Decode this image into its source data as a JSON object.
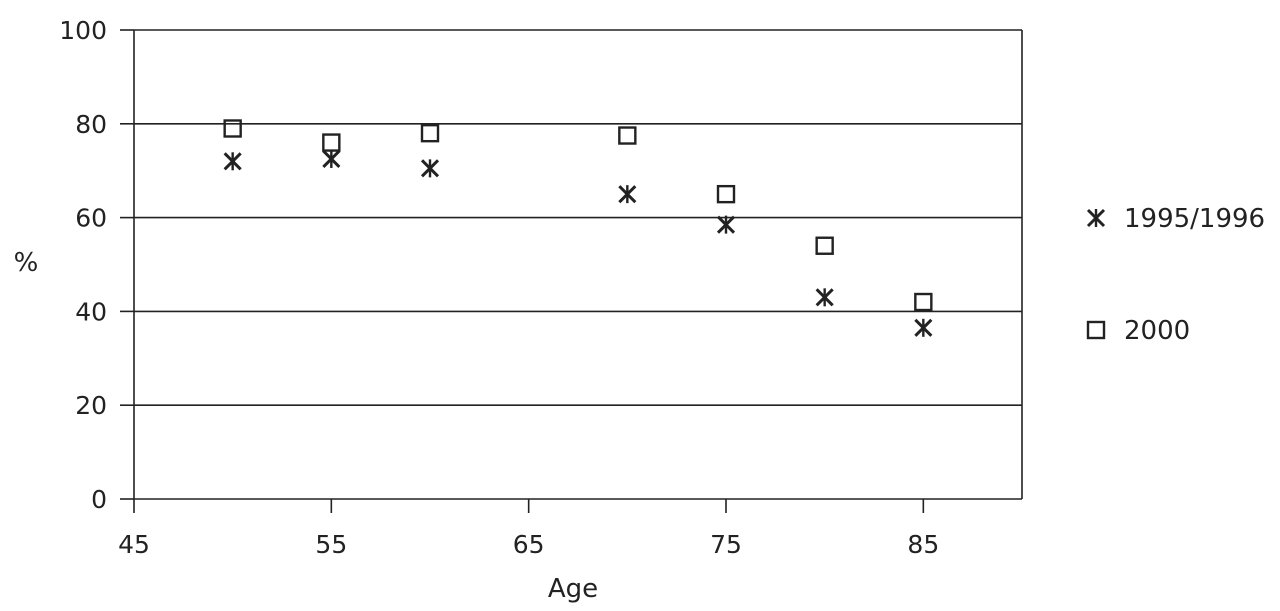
{
  "chart_data": {
    "type": "scatter",
    "xlabel": "Age",
    "ylabel": "%",
    "xlim": [
      45,
      90
    ],
    "ylim": [
      0,
      100
    ],
    "xticks": [
      45,
      55,
      65,
      75,
      85
    ],
    "yticks": [
      0,
      20,
      40,
      60,
      80,
      100
    ],
    "grid": "horizontal",
    "legend_position": "right",
    "series": [
      {
        "name": "1995/1996",
        "marker": "asterisk",
        "points": [
          {
            "x": 50,
            "y": 72
          },
          {
            "x": 55,
            "y": 72.5
          },
          {
            "x": 60,
            "y": 70.5
          },
          {
            "x": 70,
            "y": 65
          },
          {
            "x": 75,
            "y": 58.5
          },
          {
            "x": 80,
            "y": 43
          },
          {
            "x": 85,
            "y": 36.5
          }
        ]
      },
      {
        "name": "2000",
        "marker": "square",
        "points": [
          {
            "x": 50,
            "y": 79
          },
          {
            "x": 55,
            "y": 76
          },
          {
            "x": 60,
            "y": 78
          },
          {
            "x": 70,
            "y": 77.5
          },
          {
            "x": 75,
            "y": 65
          },
          {
            "x": 80,
            "y": 54
          },
          {
            "x": 85,
            "y": 42
          }
        ]
      }
    ],
    "colors": {
      "ink": "#222222",
      "grid": "#222222"
    }
  }
}
